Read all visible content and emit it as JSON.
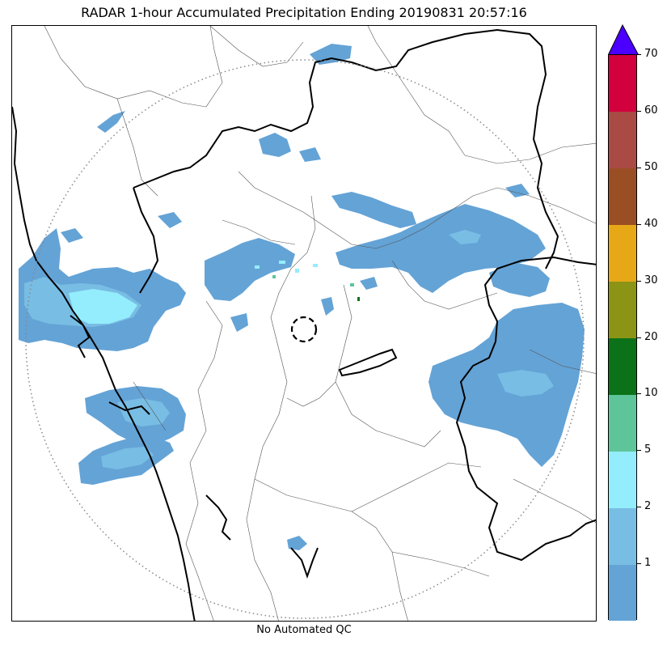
{
  "title": "RADAR 1-hour Accumulated Precipitation Ending 20190831 20:57:16",
  "footer": "No Automated QC",
  "colorbar": {
    "top_label": "70",
    "overflow_color": "#4b00ff",
    "bins": [
      {
        "label": "",
        "color": "#64a3d6"
      },
      {
        "label": "1",
        "color": "#78bde4"
      },
      {
        "label": "2",
        "color": "#94edfc"
      },
      {
        "label": "5",
        "color": "#5ec59a"
      },
      {
        "label": "10",
        "color": "#0c721a"
      },
      {
        "label": "20",
        "color": "#8b9414"
      },
      {
        "label": "30",
        "color": "#e7a818"
      },
      {
        "label": "40",
        "color": "#9a4e24"
      },
      {
        "label": "50",
        "color": "#a94a44"
      },
      {
        "label": "60",
        "color": "#d3003e"
      }
    ]
  },
  "map": {
    "range_ring": "dotted",
    "radar_site_marker": "dashed-circle",
    "coastline_color": "#000000",
    "state_border_color": "#000000",
    "district_border_color": "#555555"
  }
}
